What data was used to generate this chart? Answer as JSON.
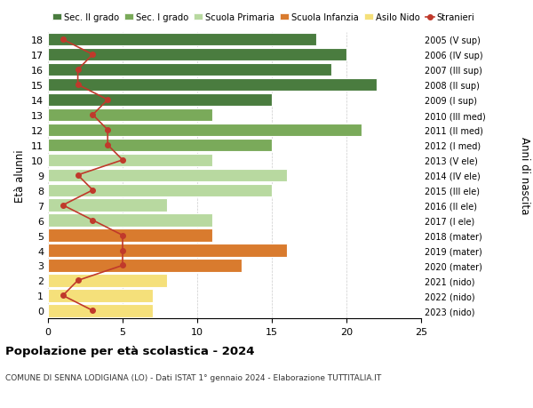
{
  "ages": [
    18,
    17,
    16,
    15,
    14,
    13,
    12,
    11,
    10,
    9,
    8,
    7,
    6,
    5,
    4,
    3,
    2,
    1,
    0
  ],
  "bar_values": [
    18,
    20,
    19,
    22,
    15,
    11,
    21,
    15,
    11,
    16,
    15,
    8,
    11,
    11,
    16,
    13,
    8,
    7,
    7
  ],
  "stranieri": [
    1,
    3,
    2,
    2,
    4,
    3,
    4,
    4,
    5,
    2,
    3,
    1,
    3,
    5,
    5,
    5,
    2,
    1,
    3
  ],
  "right_labels": [
    "2005 (V sup)",
    "2006 (IV sup)",
    "2007 (III sup)",
    "2008 (II sup)",
    "2009 (I sup)",
    "2010 (III med)",
    "2011 (II med)",
    "2012 (I med)",
    "2013 (V ele)",
    "2014 (IV ele)",
    "2015 (III ele)",
    "2016 (II ele)",
    "2017 (I ele)",
    "2018 (mater)",
    "2019 (mater)",
    "2020 (mater)",
    "2021 (nido)",
    "2022 (nido)",
    "2023 (nido)"
  ],
  "bar_colors": [
    "#4a7c3f",
    "#4a7c3f",
    "#4a7c3f",
    "#4a7c3f",
    "#4a7c3f",
    "#7aaa5a",
    "#7aaa5a",
    "#7aaa5a",
    "#b8d9a0",
    "#b8d9a0",
    "#b8d9a0",
    "#b8d9a0",
    "#b8d9a0",
    "#d97b2e",
    "#d97b2e",
    "#d97b2e",
    "#f5e07a",
    "#f5e07a",
    "#f5e07a"
  ],
  "legend_labels": [
    "Sec. II grado",
    "Sec. I grado",
    "Scuola Primaria",
    "Scuola Infanzia",
    "Asilo Nido",
    "Stranieri"
  ],
  "legend_colors": [
    "#4a7c3f",
    "#7aaa5a",
    "#b8d9a0",
    "#d97b2e",
    "#f5e07a",
    "#c0392b"
  ],
  "stranieri_line_color": "#c0392b",
  "title": "Popolazione per età scolastica - 2024",
  "subtitle": "COMUNE DI SENNA LODIGIANA (LO) - Dati ISTAT 1° gennaio 2024 - Elaborazione TUTTITALIA.IT",
  "right_axis_label": "Anni di nascita",
  "ylabel": "Età alunni",
  "xlim": [
    0,
    25
  ],
  "ylim": [
    -0.5,
    18.5
  ],
  "background_color": "#ffffff",
  "grid_color": "#cccccc",
  "figsize": [
    6.0,
    4.6
  ],
  "dpi": 100
}
